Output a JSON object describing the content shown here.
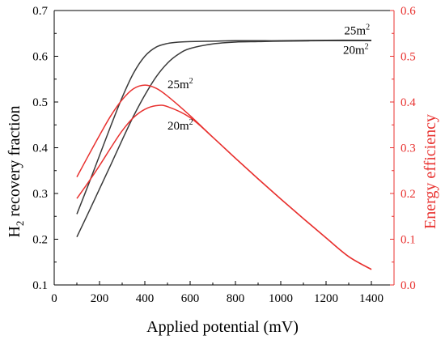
{
  "chart_data": {
    "type": "line",
    "xlabel": "Applied potential (mV)",
    "ylabel_left": {
      "main": "H",
      "sub": "2",
      "rest": " recovery fraction"
    },
    "ylabel_right": "Energy efficiency",
    "xlim": [
      0,
      1500
    ],
    "ylim_left": [
      0.1,
      0.7
    ],
    "ylim_right": [
      0.0,
      0.6
    ],
    "xticks": [
      0,
      200,
      400,
      600,
      800,
      1000,
      1200,
      1400
    ],
    "yticks_left": [
      0.1,
      0.2,
      0.3,
      0.4,
      0.5,
      0.6,
      0.7
    ],
    "yticks_right": [
      0.0,
      0.1,
      0.2,
      0.3,
      0.4,
      0.5,
      0.6
    ],
    "xtick_labels": [
      "0",
      "200",
      "400",
      "600",
      "800",
      "1000",
      "1200",
      "1400"
    ],
    "ytick_labels_left": [
      "0.1",
      "0.2",
      "0.3",
      "0.4",
      "0.5",
      "0.6",
      "0.7"
    ],
    "ytick_labels_right": [
      "0.0",
      "0.1",
      "0.2",
      "0.3",
      "0.4",
      "0.5",
      "0.6"
    ],
    "grid": false,
    "legend": "none",
    "colors": {
      "left_axis": "#000000",
      "right_axis": "#e8312f",
      "recovery": "#3a3a3a",
      "efficiency": "#e8312f"
    },
    "series": [
      {
        "axis": "left",
        "area_label": "25m",
        "x": [
          100,
          150,
          200,
          250,
          300,
          350,
          400,
          450,
          500,
          550,
          600,
          700,
          800,
          900,
          1000,
          1200,
          1400
        ],
        "y": [
          0.255,
          0.318,
          0.383,
          0.448,
          0.51,
          0.563,
          0.6,
          0.62,
          0.628,
          0.631,
          0.632,
          0.633,
          0.634,
          0.634,
          0.634,
          0.635,
          0.635
        ]
      },
      {
        "axis": "left",
        "area_label": "20m",
        "x": [
          100,
          150,
          200,
          250,
          300,
          350,
          400,
          450,
          500,
          550,
          600,
          700,
          800,
          900,
          1000,
          1200,
          1400
        ],
        "y": [
          0.205,
          0.257,
          0.31,
          0.363,
          0.417,
          0.469,
          0.515,
          0.555,
          0.585,
          0.605,
          0.617,
          0.627,
          0.631,
          0.632,
          0.633,
          0.634,
          0.634
        ]
      },
      {
        "axis": "right",
        "area_label": "25m",
        "x": [
          100,
          150,
          200,
          250,
          300,
          350,
          400,
          450,
          500,
          600,
          700,
          800,
          900,
          1000,
          1100,
          1200,
          1300,
          1400
        ],
        "y": [
          0.236,
          0.282,
          0.327,
          0.37,
          0.405,
          0.429,
          0.437,
          0.43,
          0.413,
          0.37,
          0.323,
          0.277,
          0.232,
          0.188,
          0.145,
          0.103,
          0.062,
          0.034
        ]
      },
      {
        "axis": "right",
        "area_label": "20m",
        "x": [
          100,
          150,
          200,
          250,
          300,
          350,
          400,
          450,
          500,
          600,
          700,
          800,
          900,
          1000,
          1100,
          1200,
          1300,
          1400
        ],
        "y": [
          0.189,
          0.224,
          0.261,
          0.3,
          0.337,
          0.366,
          0.384,
          0.392,
          0.39,
          0.366,
          0.323,
          0.277,
          0.232,
          0.188,
          0.145,
          0.103,
          0.062,
          0.034
        ]
      }
    ],
    "annotations": [
      {
        "text": "25m",
        "sup": "2",
        "x": 1280,
        "y": 0.648,
        "axis": "left"
      },
      {
        "text": "20m",
        "sup": "2",
        "x": 1275,
        "y": 0.605,
        "axis": "left"
      },
      {
        "text": "25m",
        "sup": "2",
        "x": 500,
        "y": 0.53,
        "axis": "left"
      },
      {
        "text": "20m",
        "sup": "2",
        "x": 500,
        "y": 0.44,
        "axis": "left"
      }
    ]
  }
}
